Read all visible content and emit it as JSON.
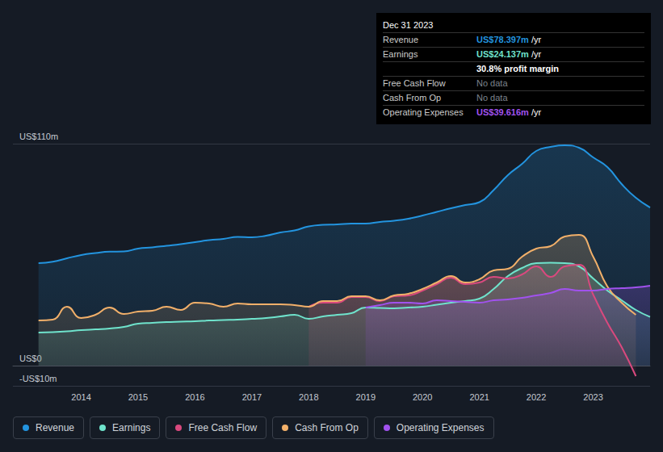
{
  "chart_data": {
    "type": "area",
    "x": [
      2013.25,
      2013.5,
      2013.75,
      2014,
      2014.25,
      2014.5,
      2014.75,
      2015,
      2015.25,
      2015.5,
      2015.75,
      2016,
      2016.25,
      2016.5,
      2016.75,
      2017,
      2017.25,
      2017.5,
      2017.75,
      2018,
      2018.25,
      2018.5,
      2018.75,
      2019,
      2019.25,
      2019.5,
      2019.75,
      2020,
      2020.25,
      2020.5,
      2020.75,
      2021,
      2021.25,
      2021.5,
      2021.75,
      2022,
      2022.25,
      2022.5,
      2022.75,
      2023,
      2023.25,
      2023.5,
      2023.75,
      2024
    ],
    "series": [
      {
        "name": "Revenue",
        "color": "#2394df",
        "values": [
          50.8,
          51.5,
          53.2,
          54.8,
          55.8,
          56.5,
          56.6,
          58.0,
          58.6,
          59.4,
          60.2,
          61.2,
          62.2,
          62.8,
          63.8,
          63.6,
          64.4,
          66.0,
          67.0,
          69.0,
          69.8,
          70.0,
          70.4,
          70.4,
          71.2,
          71.8,
          72.8,
          74.4,
          76.2,
          78.0,
          79.6,
          81.0,
          87.0,
          94.4,
          100.0,
          106.4,
          108.4,
          109.2,
          108.0,
          103.2,
          98.4,
          90.0,
          83.2,
          78.397
        ]
      },
      {
        "name": "Earnings",
        "color": "#6fe3cc",
        "values": [
          16.4,
          16.6,
          17.0,
          17.6,
          18.0,
          18.4,
          19.2,
          20.8,
          21.2,
          21.6,
          21.8,
          22.0,
          22.4,
          22.6,
          22.8,
          23.2,
          23.6,
          24.4,
          25.2,
          23.2,
          24.4,
          25.2,
          26.0,
          28.8,
          28.6,
          28.4,
          28.8,
          29.2,
          30.2,
          31.2,
          32.0,
          33.2,
          38.0,
          44.4,
          48.4,
          50.8,
          51.0,
          50.8,
          49.2,
          43.2,
          37.2,
          32.4,
          27.6,
          24.137
        ]
      },
      {
        "name": "Free Cash Flow",
        "color": "#d9497e",
        "values": [
          null,
          null,
          null,
          null,
          null,
          null,
          null,
          null,
          null,
          null,
          null,
          null,
          null,
          null,
          null,
          null,
          null,
          null,
          null,
          29.2,
          31.2,
          31.2,
          34.0,
          34.0,
          32.0,
          34.4,
          34.8,
          37.2,
          40.4,
          43.6,
          40.4,
          41.2,
          44.0,
          43.2,
          45.2,
          49.2,
          44.0,
          49.2,
          50.0,
          35.2,
          21.2,
          9.2,
          -5.2,
          null
        ]
      },
      {
        "name": "Cash From Op",
        "color": "#f2b06a",
        "values": [
          22.4,
          22.8,
          29.2,
          23.6,
          25.2,
          28.8,
          25.6,
          26.8,
          27.2,
          29.2,
          27.6,
          31.2,
          30.8,
          29.2,
          30.8,
          30.4,
          30.4,
          30.4,
          30.0,
          29.2,
          32.0,
          32.0,
          34.4,
          34.4,
          32.4,
          34.8,
          35.6,
          38.0,
          41.2,
          44.4,
          41.2,
          42.8,
          47.2,
          48.0,
          54.0,
          58.0,
          59.2,
          64.0,
          64.8,
          54.0,
          39.2,
          31.2,
          25.2,
          null
        ]
      },
      {
        "name": "Operating Expenses",
        "color": "#a152ee",
        "values": [
          null,
          null,
          null,
          null,
          null,
          null,
          null,
          null,
          null,
          null,
          null,
          null,
          null,
          null,
          null,
          null,
          null,
          null,
          null,
          null,
          null,
          null,
          null,
          28.8,
          30.0,
          31.2,
          31.2,
          30.8,
          32.4,
          32.0,
          31.6,
          31.2,
          32.4,
          32.8,
          33.6,
          34.8,
          36.0,
          38.0,
          37.2,
          37.2,
          38.0,
          38.4,
          38.8,
          39.616
        ]
      }
    ],
    "xlim": [
      2012.8,
      2024
    ],
    "xticks": [
      2014,
      2015,
      2016,
      2017,
      2018,
      2019,
      2020,
      2021,
      2022,
      2023
    ],
    "ylim": [
      -10,
      110
    ],
    "yticks": [
      {
        "value": -10,
        "label": "-US$10m"
      },
      {
        "value": 0,
        "label": "US$0"
      },
      {
        "value": 110,
        "label": "US$110m"
      }
    ],
    "grid": true,
    "legend": "bottom-left",
    "info_box": {
      "title": "Dec 31 2023",
      "rows": [
        {
          "label": "Revenue",
          "value": "US$78.397m",
          "unit": "/yr"
        },
        {
          "label": "Earnings",
          "value": "US$24.137m",
          "unit": "/yr"
        },
        {
          "value": "30.8% profit margin"
        },
        {
          "label": "Free Cash Flow",
          "value": "No data"
        },
        {
          "label": "Cash From Op",
          "value": "No data"
        },
        {
          "label": "Operating Expenses",
          "value": "US$39.616m",
          "unit": "/yr"
        }
      ]
    }
  }
}
